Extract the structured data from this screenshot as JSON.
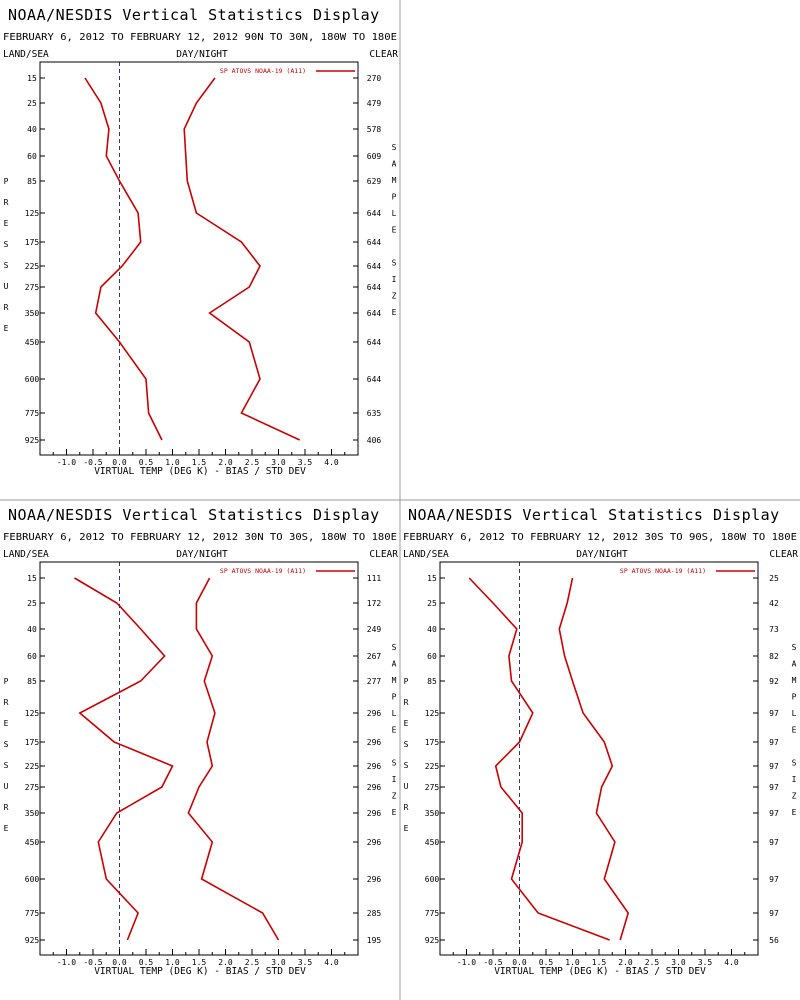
{
  "colors": {
    "series": "#cc0000",
    "axis": "#000000",
    "zero_line": "#000066",
    "divider": "#999999"
  },
  "chart_data": [
    {
      "type": "line",
      "title": "NOAA/NESDIS Vertical Statistics Display",
      "subtitle": "FEBRUARY 6, 2012 TO FEBRUARY 12, 2012 90N TO 30N, 180W TO 180E",
      "corner_left": "LAND/SEA",
      "corner_center": "DAY/NIGHT",
      "corner_right": "CLEAR",
      "xlabel": "VIRTUAL TEMP (DEG K) - BIAS / STD DEV",
      "ylabel_left": [
        "P",
        "R",
        "E",
        "S",
        "S",
        "U",
        "R",
        "E"
      ],
      "ylabel_right": [
        "S",
        "A",
        "M",
        "P",
        "L",
        "E",
        "",
        "S",
        "I",
        "Z",
        "E"
      ],
      "legend": "SP ATOVS NOAA-19 (A11)",
      "xlim": [
        -1.5,
        4.5
      ],
      "xticks": [
        "-1.0",
        "-0.5",
        "0.0",
        "0.5",
        "1.0",
        "1.5",
        "2.0",
        "2.5",
        "3.0",
        "3.5",
        "4.0"
      ],
      "pressure_levels": [
        "15",
        "25",
        "40",
        "60",
        "85",
        "125",
        "175",
        "225",
        "275",
        "350",
        "450",
        "600",
        "775",
        "925"
      ],
      "sample_size": [
        "270",
        "479",
        "578",
        "609",
        "629",
        "644",
        "644",
        "644",
        "644",
        "644",
        "644",
        "644",
        "635",
        "406"
      ],
      "bias": [
        -0.65,
        -0.35,
        -0.2,
        -0.25,
        0.0,
        0.35,
        0.4,
        0.05,
        -0.35,
        -0.45,
        0.0,
        0.5,
        0.55,
        0.8
      ],
      "std_dev": [
        1.8,
        1.45,
        1.22,
        1.25,
        1.28,
        1.45,
        2.3,
        2.65,
        2.45,
        1.7,
        2.45,
        2.65,
        2.3,
        3.4
      ]
    },
    {
      "type": "line",
      "title": "NOAA/NESDIS Vertical Statistics Display",
      "subtitle": "FEBRUARY 6, 2012 TO FEBRUARY 12, 2012 30N TO 30S, 180W TO 180E",
      "corner_left": "LAND/SEA",
      "corner_center": "DAY/NIGHT",
      "corner_right": "CLEAR",
      "xlabel": "VIRTUAL TEMP (DEG K) - BIAS / STD DEV",
      "ylabel_left": [
        "P",
        "R",
        "E",
        "S",
        "S",
        "U",
        "R",
        "E"
      ],
      "ylabel_right": [
        "S",
        "A",
        "M",
        "P",
        "L",
        "E",
        "",
        "S",
        "I",
        "Z",
        "E"
      ],
      "legend": "SP ATOVS NOAA-19 (A11)",
      "xlim": [
        -1.5,
        4.5
      ],
      "xticks": [
        "-1.0",
        "-0.5",
        "0.0",
        "0.5",
        "1.0",
        "1.5",
        "2.0",
        "2.5",
        "3.0",
        "3.5",
        "4.0"
      ],
      "pressure_levels": [
        "15",
        "25",
        "40",
        "60",
        "85",
        "125",
        "175",
        "225",
        "275",
        "350",
        "450",
        "600",
        "775",
        "925"
      ],
      "sample_size": [
        "111",
        "172",
        "249",
        "267",
        "277",
        "296",
        "296",
        "296",
        "296",
        "296",
        "296",
        "296",
        "285",
        "195"
      ],
      "bias": [
        -0.85,
        -0.05,
        0.4,
        0.85,
        0.4,
        -0.75,
        -0.1,
        1.0,
        0.8,
        -0.05,
        -0.4,
        -0.25,
        0.35,
        0.15
      ],
      "std_dev": [
        1.7,
        1.45,
        1.45,
        1.75,
        1.6,
        1.8,
        1.65,
        1.75,
        1.5,
        1.3,
        1.75,
        1.55,
        2.7,
        3.0
      ]
    },
    {
      "type": "line",
      "title": "NOAA/NESDIS Vertical Statistics Display",
      "subtitle": "FEBRUARY 6, 2012 TO FEBRUARY 12, 2012 30S TO 90S, 180W TO 180E",
      "corner_left": "LAND/SEA",
      "corner_center": "DAY/NIGHT",
      "corner_right": "CLEAR",
      "xlabel": "VIRTUAL TEMP (DEG K) - BIAS / STD DEV",
      "ylabel_left": [
        "P",
        "R",
        "E",
        "S",
        "S",
        "U",
        "R",
        "E"
      ],
      "ylabel_right": [
        "S",
        "A",
        "M",
        "P",
        "L",
        "E",
        "",
        "S",
        "I",
        "Z",
        "E"
      ],
      "legend": "SP ATOVS NOAA-19 (A11)",
      "xlim": [
        -1.5,
        4.5
      ],
      "xticks": [
        "-1.0",
        "-0.5",
        "0.0",
        "0.5",
        "1.0",
        "1.5",
        "2.0",
        "2.5",
        "3.0",
        "3.5",
        "4.0"
      ],
      "pressure_levels": [
        "15",
        "25",
        "40",
        "60",
        "85",
        "125",
        "175",
        "225",
        "275",
        "350",
        "450",
        "600",
        "775",
        "925"
      ],
      "sample_size": [
        "25",
        "42",
        "73",
        "82",
        "92",
        "97",
        "97",
        "97",
        "97",
        "97",
        "97",
        "97",
        "97",
        "56"
      ],
      "bias": [
        -0.95,
        -0.5,
        -0.05,
        -0.2,
        -0.15,
        0.25,
        0.0,
        -0.45,
        -0.35,
        0.05,
        0.05,
        -0.15,
        0.35,
        1.7
      ],
      "std_dev": [
        1.0,
        0.9,
        0.75,
        0.85,
        1.0,
        1.2,
        1.6,
        1.75,
        1.55,
        1.45,
        1.8,
        1.6,
        2.05,
        1.9
      ]
    }
  ]
}
